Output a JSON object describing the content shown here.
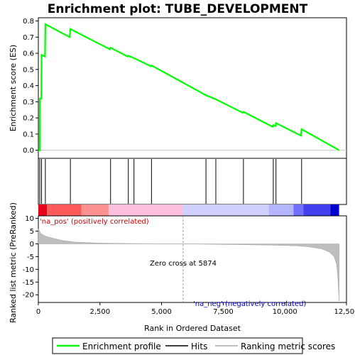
{
  "chart_data": {
    "type": "line",
    "title": "Enrichment plot: TUBE_DEVELOPMENT",
    "xlabel": "Rank in Ordered Dataset",
    "xlim": [
      0,
      12500
    ],
    "x_ticks": [
      0,
      2500,
      5000,
      7500,
      10000,
      12500
    ],
    "x_tick_labels": [
      "0",
      "2,500",
      "5,000",
      "7,500",
      "10,000",
      "12,500"
    ],
    "es_panel": {
      "ylabel": "Enrichment score (ES)",
      "ylim": [
        -0.05,
        0.82
      ],
      "y_ticks": [
        0.0,
        0.1,
        0.2,
        0.3,
        0.4,
        0.5,
        0.6,
        0.7,
        0.8
      ],
      "y_tick_labels": [
        "0.0",
        "0.1",
        "0.2",
        "0.3",
        "0.4",
        "0.5",
        "0.6",
        "0.7",
        "0.8"
      ],
      "series_name": "Enrichment profile",
      "color": "#00ff00",
      "points": [
        [
          0,
          0.0
        ],
        [
          55,
          0.0
        ],
        [
          60,
          0.32
        ],
        [
          120,
          0.32
        ],
        [
          130,
          0.59
        ],
        [
          270,
          0.58
        ],
        [
          285,
          0.78
        ],
        [
          1270,
          0.7
        ],
        [
          1300,
          0.75
        ],
        [
          2900,
          0.625
        ],
        [
          2930,
          0.635
        ],
        [
          3620,
          0.58
        ],
        [
          3650,
          0.585
        ],
        [
          3880,
          0.57
        ],
        [
          4560,
          0.52
        ],
        [
          4590,
          0.525
        ],
        [
          6800,
          0.34
        ],
        [
          7200,
          0.315
        ],
        [
          8290,
          0.232
        ],
        [
          8320,
          0.238
        ],
        [
          9500,
          0.145
        ],
        [
          9530,
          0.155
        ],
        [
          9620,
          0.15
        ],
        [
          9640,
          0.168
        ],
        [
          10650,
          0.09
        ],
        [
          10680,
          0.13
        ],
        [
          12200,
          0.0
        ]
      ]
    },
    "hits": {
      "name": "Hits",
      "ranks": [
        60,
        130,
        285,
        1300,
        2930,
        3650,
        3880,
        4590,
        6800,
        7200,
        8320,
        9530,
        9640,
        10680
      ]
    },
    "metric_panel": {
      "ylabel": "Ranked list metric (PreRanked)",
      "series_name": "Ranking metric scores",
      "ylim": [
        -23,
        11
      ],
      "y_ticks": [
        10,
        5,
        0,
        -5,
        -10,
        -15,
        -20
      ],
      "y_tick_labels": [
        "10",
        "5",
        "0",
        "-5",
        "-10",
        "-15",
        "-20"
      ],
      "color": "#bebebe",
      "points": [
        [
          0,
          6.0
        ],
        [
          100,
          4.0
        ],
        [
          300,
          3.0
        ],
        [
          600,
          2.2
        ],
        [
          1000,
          1.3
        ],
        [
          1500,
          0.7
        ],
        [
          2500,
          0.3
        ],
        [
          3500,
          0.15
        ],
        [
          5874,
          0.0
        ],
        [
          8000,
          -0.3
        ],
        [
          9500,
          -0.5
        ],
        [
          10500,
          -0.8
        ],
        [
          11000,
          -1.2
        ],
        [
          11500,
          -2.0
        ],
        [
          11800,
          -3.2
        ],
        [
          12000,
          -5.0
        ],
        [
          12100,
          -8.0
        ],
        [
          12150,
          -13.0
        ],
        [
          12200,
          -22.5
        ],
        [
          12200,
          0.0
        ]
      ]
    },
    "gradient_bar": {
      "segments": [
        {
          "x0": 0,
          "x1": 350,
          "color": "#e8001a"
        },
        {
          "x0": 350,
          "x1": 1750,
          "color": "#ff5a5a"
        },
        {
          "x0": 1750,
          "x1": 2850,
          "color": "#ff9090"
        },
        {
          "x0": 2850,
          "x1": 5874,
          "color": "#ffc0e0"
        },
        {
          "x0": 5874,
          "x1": 9350,
          "color": "#d0d0ff"
        },
        {
          "x0": 9350,
          "x1": 10350,
          "color": "#b4b4ff"
        },
        {
          "x0": 10350,
          "x1": 10750,
          "color": "#7070ff"
        },
        {
          "x0": 10750,
          "x1": 11850,
          "color": "#4040ee"
        },
        {
          "x0": 11850,
          "x1": 12200,
          "color": "#0000cc"
        }
      ]
    },
    "annotations": {
      "pos_label": "'na_pos' (positively correlated)",
      "neg_label": "'na_neg' (negatively correlated)",
      "zero_cross": "Zero cross at 5874",
      "zero_cross_rank": 5874
    },
    "legend": {
      "position": "bottom",
      "items": [
        {
          "label": "Enrichment profile",
          "color": "#00ff00"
        },
        {
          "label": "Hits",
          "color": "#000000"
        },
        {
          "label": "Ranking metric scores",
          "color": "#bebebe"
        }
      ]
    }
  }
}
